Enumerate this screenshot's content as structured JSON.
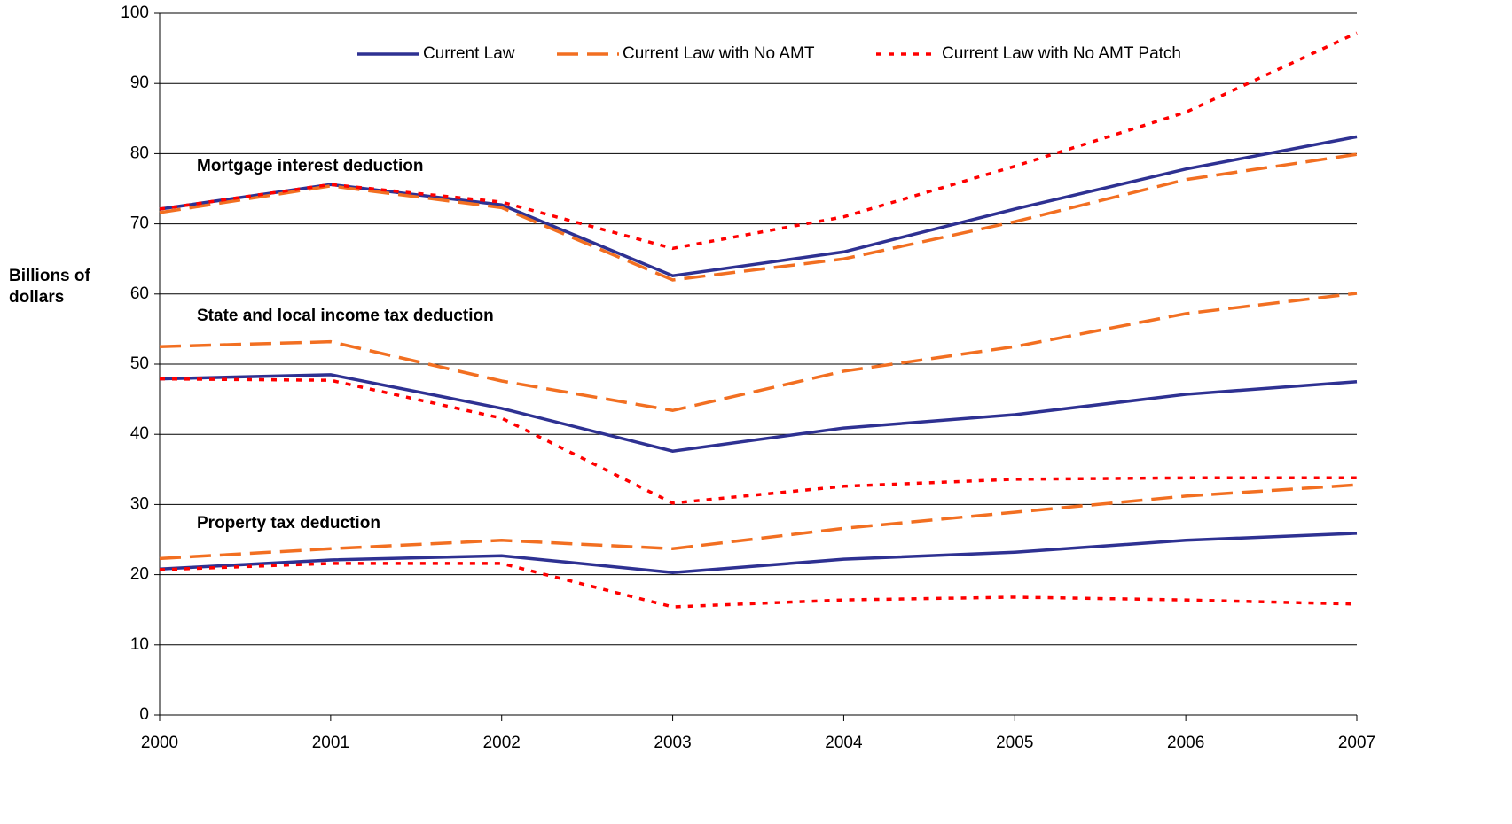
{
  "chart_data": {
    "type": "line",
    "y_label": "Billions of dollars",
    "x": [
      2000,
      2001,
      2002,
      2003,
      2004,
      2005,
      2006,
      2007
    ],
    "xlim": [
      2000,
      2007
    ],
    "xticks": [
      2000,
      2001,
      2002,
      2003,
      2004,
      2005,
      2006,
      2007
    ],
    "ylim": [
      0,
      100
    ],
    "yticks": [
      0,
      10,
      20,
      30,
      40,
      50,
      60,
      70,
      80,
      90,
      100
    ],
    "grid": true,
    "legend": "top",
    "annotations": [
      "Mortgage interest deduction",
      "State and local income tax deduction",
      "Property tax deduction"
    ],
    "series": [
      {
        "name": "Current Law",
        "color": "#2e3192",
        "dash": "solid",
        "values": [
          [
            72.1,
            75.6,
            72.7,
            62.6,
            66.0,
            72.1,
            77.8,
            82.4
          ],
          [
            47.9,
            48.5,
            43.7,
            37.6,
            40.9,
            42.8,
            45.7,
            47.5
          ],
          [
            20.8,
            22.1,
            22.7,
            20.3,
            22.2,
            23.2,
            24.9,
            25.9
          ]
        ]
      },
      {
        "name": "Current Law with No AMT",
        "color": "#f26f21",
        "dash": "dashed",
        "values": [
          [
            71.6,
            75.4,
            72.3,
            62.0,
            65.0,
            70.3,
            76.3,
            79.9
          ],
          [
            52.5,
            53.2,
            47.6,
            43.4,
            49.0,
            52.5,
            57.2,
            60.1
          ],
          [
            22.3,
            23.7,
            24.9,
            23.7,
            26.6,
            28.9,
            31.2,
            32.8
          ]
        ]
      },
      {
        "name": "Current Law with No AMT Patch",
        "color": "#ff0000",
        "dash": "dotted",
        "values": [
          [
            72.1,
            75.6,
            73.1,
            66.5,
            71.0,
            78.2,
            85.9,
            97.2
          ],
          [
            47.9,
            47.7,
            42.3,
            30.2,
            32.6,
            33.6,
            33.8,
            33.8
          ],
          [
            20.7,
            21.6,
            21.6,
            15.4,
            16.4,
            16.8,
            16.4,
            15.8
          ]
        ]
      }
    ]
  }
}
